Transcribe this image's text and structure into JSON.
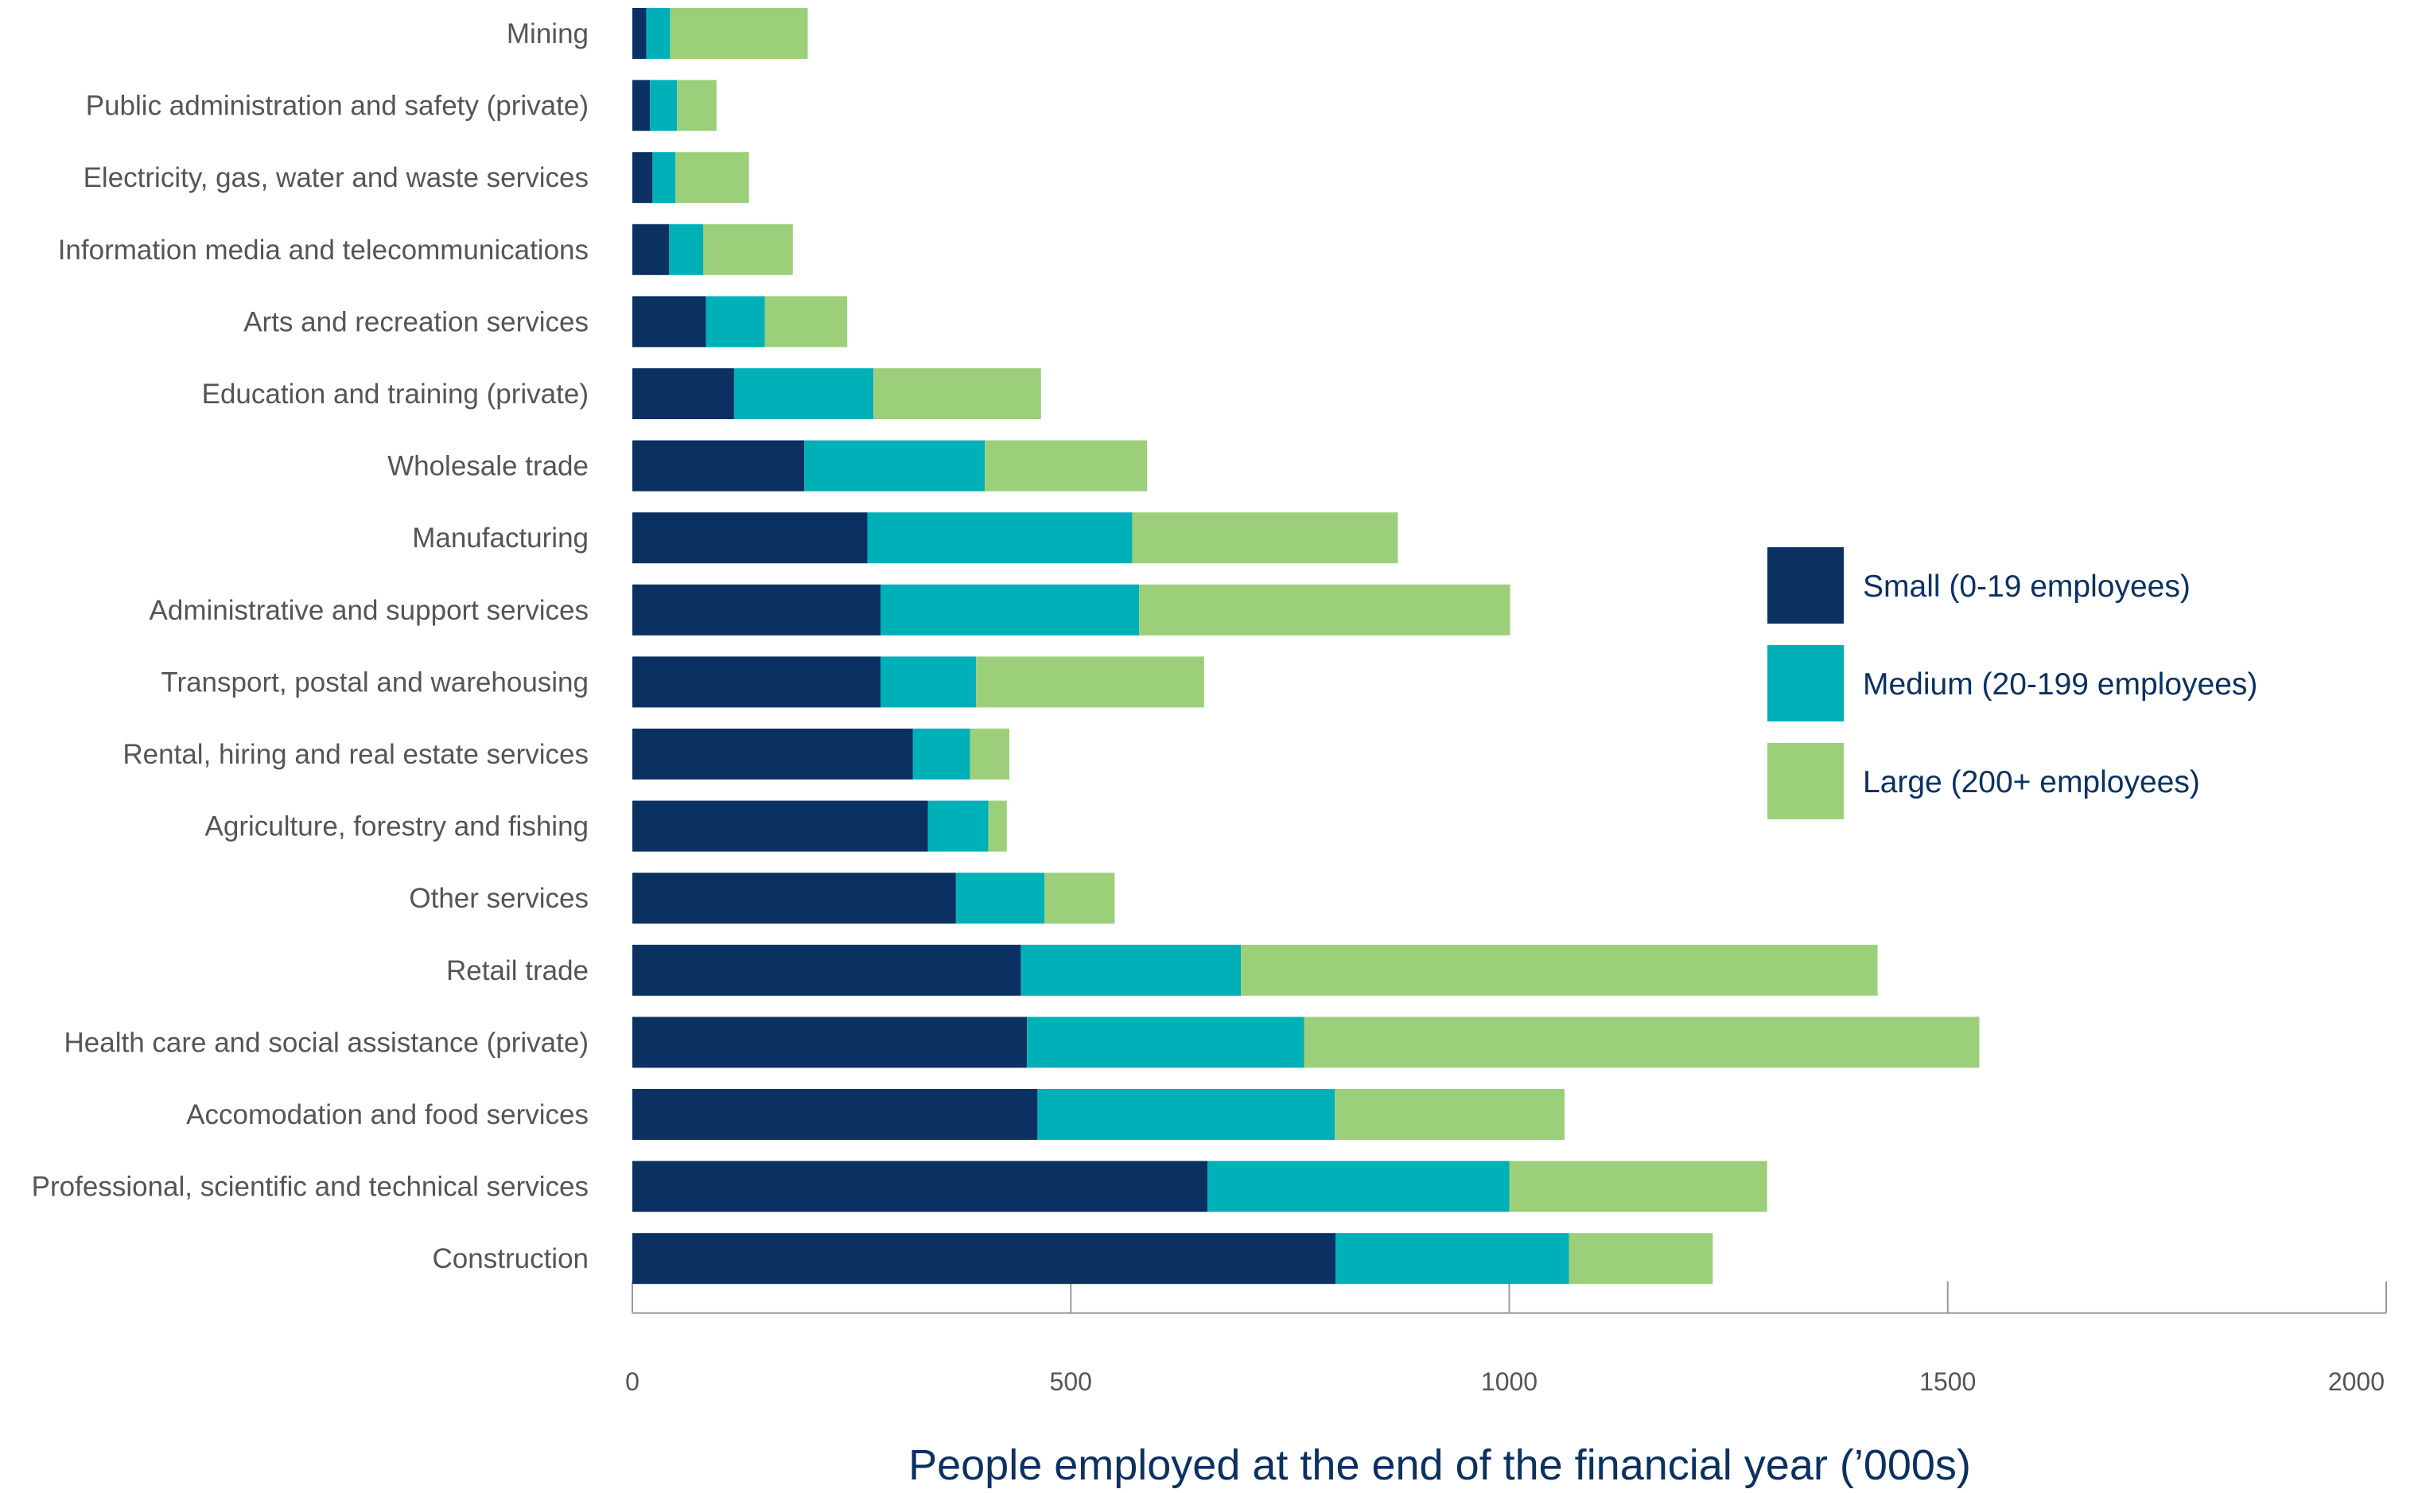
{
  "chart_data": {
    "type": "bar",
    "orientation": "horizontal",
    "stacked": true,
    "title": "",
    "xlabel": "People employed at the end of the financial year (’000s)",
    "ylabel": "",
    "xlim": [
      0,
      2000
    ],
    "xticks": [
      0,
      500,
      1000,
      1500,
      2000
    ],
    "grid": false,
    "legend_position": "right",
    "categories": [
      "Mining",
      "Public administration and safety (private)",
      "Electricity, gas, water and waste services",
      "Information media and telecommunications",
      "Arts and recreation services",
      "Education and training (private)",
      "Wholesale trade",
      "Manufacturing",
      "Administrative and support services",
      "Transport, postal and warehousing",
      "Rental, hiring and real estate services",
      "Agriculture, forestry and fishing",
      "Other services",
      "Retail trade",
      "Health care and social assistance (private)",
      "Accomodation and food services",
      "Professional, scientific and technical services",
      "Construction"
    ],
    "series": [
      {
        "name": "Small (0-19 employees)",
        "color": "#0a3161",
        "values": [
          16,
          20,
          23,
          42,
          84,
          116,
          196,
          268,
          283,
          283,
          320,
          337,
          369,
          443,
          450,
          462,
          656,
          802
        ]
      },
      {
        "name": "Medium (20-199 employees)",
        "color": "#00b0b9",
        "values": [
          27,
          31,
          26,
          39,
          67,
          159,
          206,
          302,
          295,
          109,
          65,
          69,
          101,
          251,
          316,
          339,
          344,
          266
        ]
      },
      {
        "name": "Large (200+ employees)",
        "color": "#9ccf7a",
        "values": [
          157,
          45,
          84,
          102,
          94,
          191,
          185,
          303,
          423,
          260,
          45,
          21,
          80,
          726,
          770,
          262,
          294,
          164
        ]
      }
    ]
  }
}
